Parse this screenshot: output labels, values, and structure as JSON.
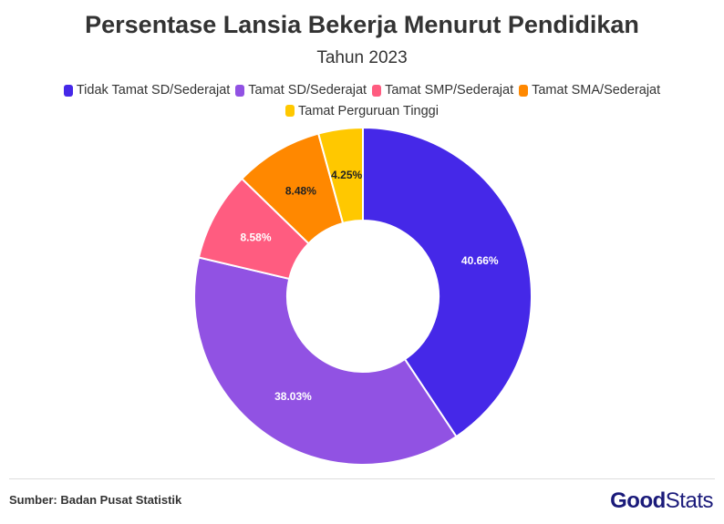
{
  "chart_data": {
    "type": "pie",
    "variant": "donut",
    "title": "Persentase Lansia Bekerja Menurut Pendidikan",
    "subtitle": "Tahun 2023",
    "legend_position": "top",
    "categories": [
      "Tidak Tamat SD/Sederajat",
      "Tamat SD/Sederajat",
      "Tamat SMP/Sederajat",
      "Tamat SMA/Sederajat",
      "Tamat Perguruan Tinggi"
    ],
    "values": [
      40.66,
      38.03,
      8.58,
      8.48,
      4.25
    ],
    "data_labels": [
      "40.66%",
      "38.03%",
      "8.58%",
      "8.48%",
      "4.25%"
    ],
    "colors": [
      "#4528E8",
      "#9152E3",
      "#FF5C80",
      "#FF8800",
      "#FFC800"
    ],
    "label_colors": [
      "#ffffff",
      "#ffffff",
      "#ffffff",
      "#222222",
      "#222222"
    ]
  },
  "footer": {
    "source": "Sumber: Badan Pusat Statistik",
    "logo_text": "GoodStats"
  }
}
